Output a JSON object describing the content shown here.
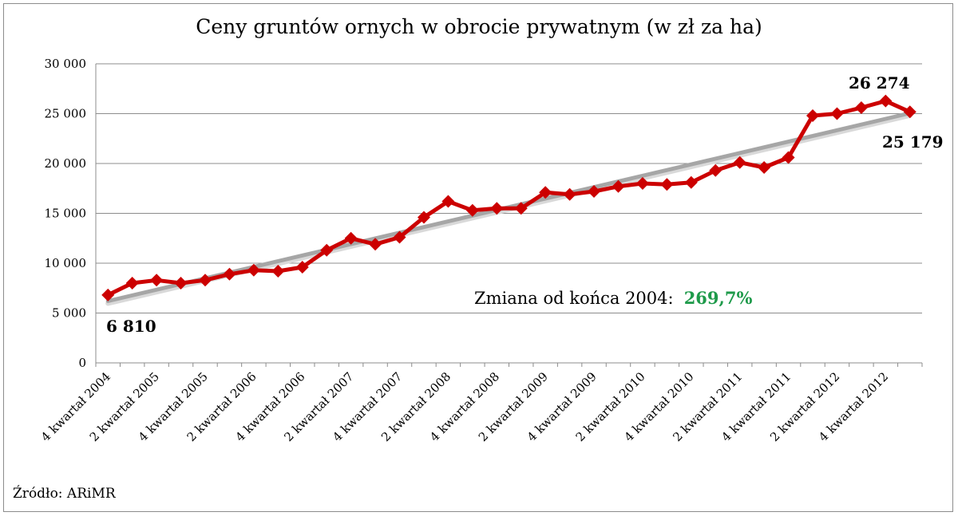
{
  "chart_data": {
    "type": "line",
    "title": "Ceny gruntów ornych w obrocie prywatnym (w zł za ha)",
    "yticks": [
      "0",
      "5 000",
      "10 000",
      "15 000",
      "20 000",
      "25 000",
      "30 000"
    ],
    "ylim": [
      0,
      30000
    ],
    "x_tick_labels": [
      "4 kwartał 2004",
      "2 kwartał 2005",
      "4 kwartał 2005",
      "2 kwartał 2006",
      "4 kwartał 2006",
      "2 kwartał 2007",
      "4 kwartał 2007",
      "2 kwartał 2008",
      "4 kwartał 2008",
      "2 kwartał 2009",
      "4 kwartał 2009",
      "2 kwartał 2010",
      "4 kwartał 2010",
      "2 kwartał 2011",
      "4 kwartał 2011",
      "2 kwartał 2012",
      "4 kwartał 2012"
    ],
    "series": [
      {
        "color": "#cc0000",
        "marker": "diamond",
        "values": [
          6810,
          8000,
          8300,
          8000,
          8300,
          8900,
          9300,
          9200,
          9600,
          11300,
          12500,
          11900,
          12600,
          14600,
          16200,
          15300,
          15500,
          15500,
          17100,
          16900,
          17200,
          17700,
          18000,
          17900,
          18100,
          19300,
          20100,
          19600,
          20600,
          24800,
          25000,
          25600,
          26274,
          25179
        ]
      }
    ],
    "trendline": {
      "color": "#a6a6a6",
      "start": 6200,
      "end": 25050
    },
    "grid": true,
    "legend": "none",
    "annotations": {
      "first_value": "6 810",
      "max_value": "26 274",
      "last_value": "25 179",
      "change_label": "Zmiana od końca 2004:",
      "change_value": "269,7%"
    }
  },
  "source": "Źródło: ARiMR"
}
